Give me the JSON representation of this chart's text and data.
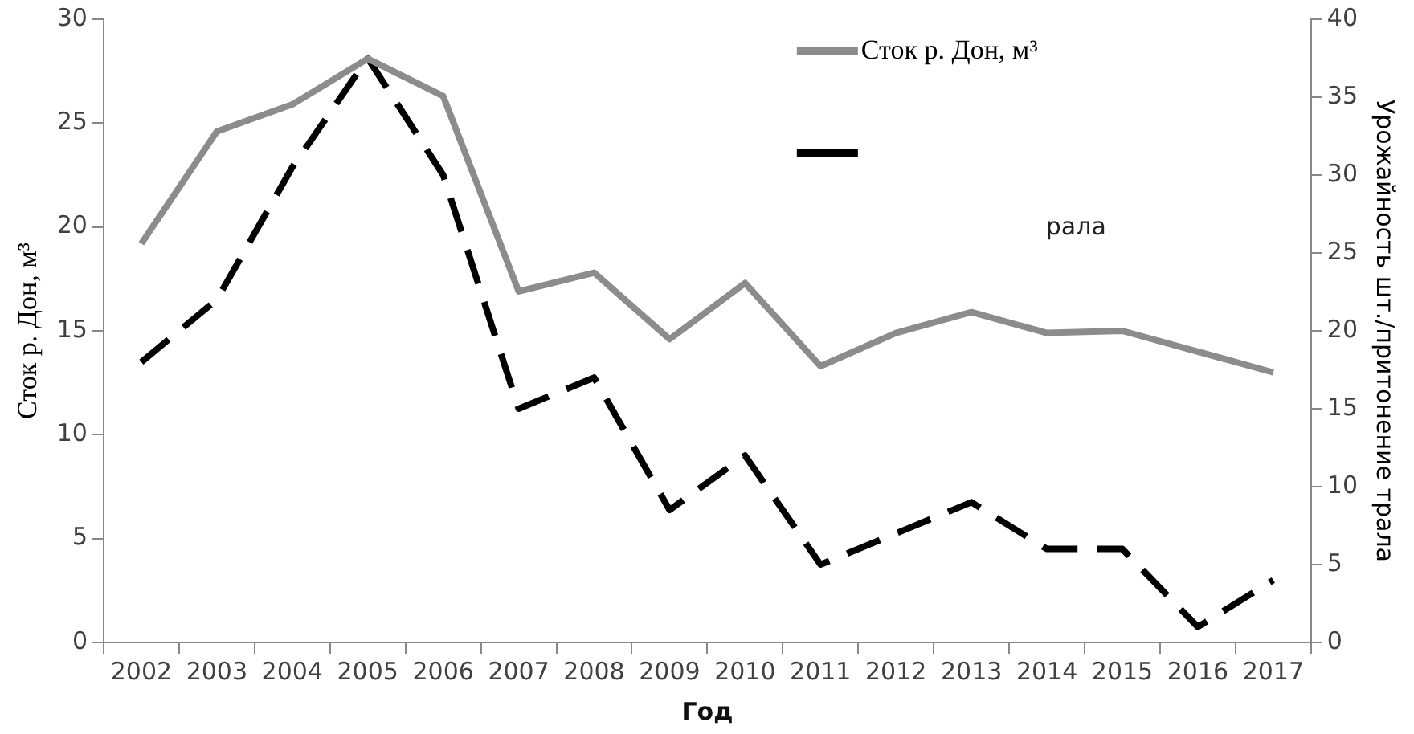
{
  "chart_data": {
    "type": "line",
    "categories": [
      "2002",
      "2003",
      "2004",
      "2005",
      "2006",
      "2007",
      "2008",
      "2009",
      "2010",
      "2011",
      "2012",
      "2013",
      "2014",
      "2015",
      "2016",
      "2017"
    ],
    "xlabel": "Год",
    "ylabel": "Сток р. Дон, м³",
    "y2label": "Урожайность шт./притонение трала",
    "ylim": [
      0,
      30
    ],
    "yticks": [
      0,
      5,
      10,
      15,
      20,
      25,
      30
    ],
    "y2lim": [
      0,
      40
    ],
    "y2ticks": [
      0,
      5,
      10,
      15,
      20,
      25,
      30,
      35,
      40
    ],
    "grid": false,
    "legend": "top right",
    "marker": "none",
    "annotations": [
      "рала"
    ],
    "series": [
      {
        "name": "Сток р. Дон, м³",
        "color": "#8c8c8c",
        "line_style": "solid",
        "values": [
          19.2,
          24.6,
          25.9,
          28.1,
          26.3,
          16.9,
          17.8,
          14.6,
          17.3,
          13.3,
          14.9,
          15.9,
          14.9,
          15.0,
          14.0,
          13.0
        ]
      },
      {
        "color": "#000000",
        "line_style": "dashed",
        "axis": "y2",
        "values": [
          18,
          22,
          30.5,
          37.5,
          30,
          15,
          17,
          8.5,
          12,
          5,
          7,
          9,
          6,
          6,
          1,
          4
        ]
      }
    ]
  }
}
